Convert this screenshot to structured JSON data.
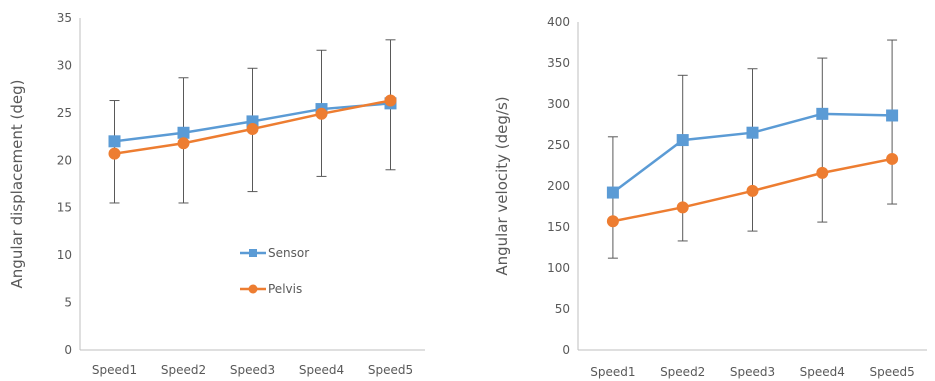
{
  "chart_data": [
    {
      "type": "line",
      "title": "",
      "xlabel": "",
      "ylabel": "Angular displacement (deg)",
      "categories": [
        "Speed1",
        "Speed2",
        "Speed3",
        "Speed4",
        "Speed5"
      ],
      "ylim": [
        0,
        35
      ],
      "yticks": [
        0,
        5,
        10,
        15,
        20,
        25,
        30,
        35
      ],
      "grid": false,
      "legend": "center",
      "series": [
        {
          "name": "Sensor",
          "color": "#5B9BD5",
          "marker": "square",
          "values": [
            22.0,
            22.9,
            24.1,
            25.4,
            26.0
          ],
          "error_low": [
            15.5,
            15.5,
            16.7,
            18.3,
            19.0
          ],
          "error_high": [
            26.3,
            28.7,
            29.7,
            31.6,
            32.7
          ]
        },
        {
          "name": "Pelvis",
          "color": "#ED7D31",
          "marker": "circle",
          "values": [
            20.7,
            21.8,
            23.3,
            24.9,
            26.3
          ]
        }
      ]
    },
    {
      "type": "line",
      "title": "",
      "xlabel": "",
      "ylabel": "Angular velocity (deg/s)",
      "categories": [
        "Speed1",
        "Speed2",
        "Speed3",
        "Speed4",
        "Speed5"
      ],
      "ylim": [
        0,
        400
      ],
      "yticks": [
        0,
        50,
        100,
        150,
        200,
        250,
        300,
        350,
        400
      ],
      "grid": false,
      "legend": "none",
      "series": [
        {
          "name": "",
          "color": "#5B9BD5",
          "marker": "square",
          "values": [
            192,
            256,
            265,
            288,
            286
          ],
          "error_low": [
            112,
            133,
            145,
            156,
            178
          ],
          "error_high": [
            260,
            335,
            343,
            356,
            378
          ]
        },
        {
          "name": "",
          "color": "#ED7D31",
          "marker": "circle",
          "values": [
            157,
            174,
            194,
            216,
            233
          ]
        }
      ]
    }
  ]
}
